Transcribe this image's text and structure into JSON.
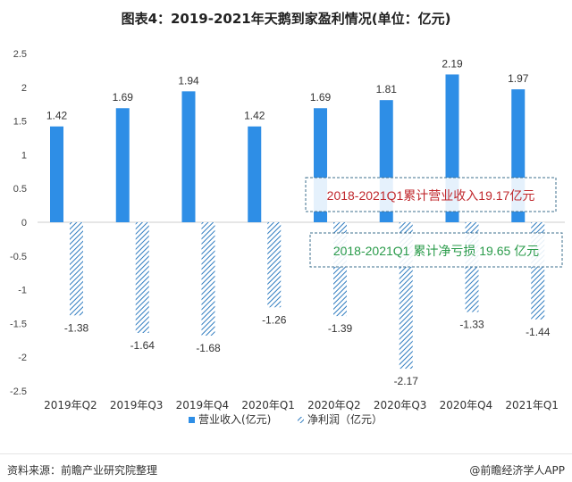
{
  "title": "图表4：2019-2021年天鹅到家盈利情况(单位：亿元)",
  "source": "资料来源：前瞻产业研究院整理",
  "brand": "@前瞻经济学人APP",
  "annotations": {
    "revenue_total": "2018-2021Q1累计营业收入19.17亿元",
    "loss_total": "2018-2021Q1 累计净亏损 19.65 亿元"
  },
  "colors": {
    "revenue": "#2e8ee6",
    "net_profit": "#2e7bbf",
    "annotation_revenue_text": "#c0282d",
    "annotation_loss_text": "#2a9b4a",
    "annotation_border": "#3e6f8e"
  },
  "chart_data": {
    "type": "bar",
    "categories": [
      "2019年Q2",
      "2019年Q3",
      "2019年Q4",
      "2020年Q1",
      "2020年Q2",
      "2020年Q3",
      "2020年Q4",
      "2021年Q1"
    ],
    "series": [
      {
        "name": "营业收入(亿元)",
        "values": [
          1.42,
          1.69,
          1.94,
          1.42,
          1.69,
          1.81,
          2.19,
          1.97
        ],
        "style": "solid"
      },
      {
        "name": "净利润（亿元）",
        "values": [
          -1.38,
          -1.64,
          -1.68,
          -1.26,
          -1.39,
          -2.17,
          -1.33,
          -1.44
        ],
        "style": "hatched"
      }
    ],
    "yticks": [
      "2.5",
      "2",
      "1.5",
      "1",
      "0.5",
      "0",
      "-0.5",
      "-1",
      "-1.5",
      "-2",
      "-2.5"
    ],
    "ylim": [
      -2.5,
      2.5
    ],
    "grid": false,
    "legend_position": "bottom"
  }
}
